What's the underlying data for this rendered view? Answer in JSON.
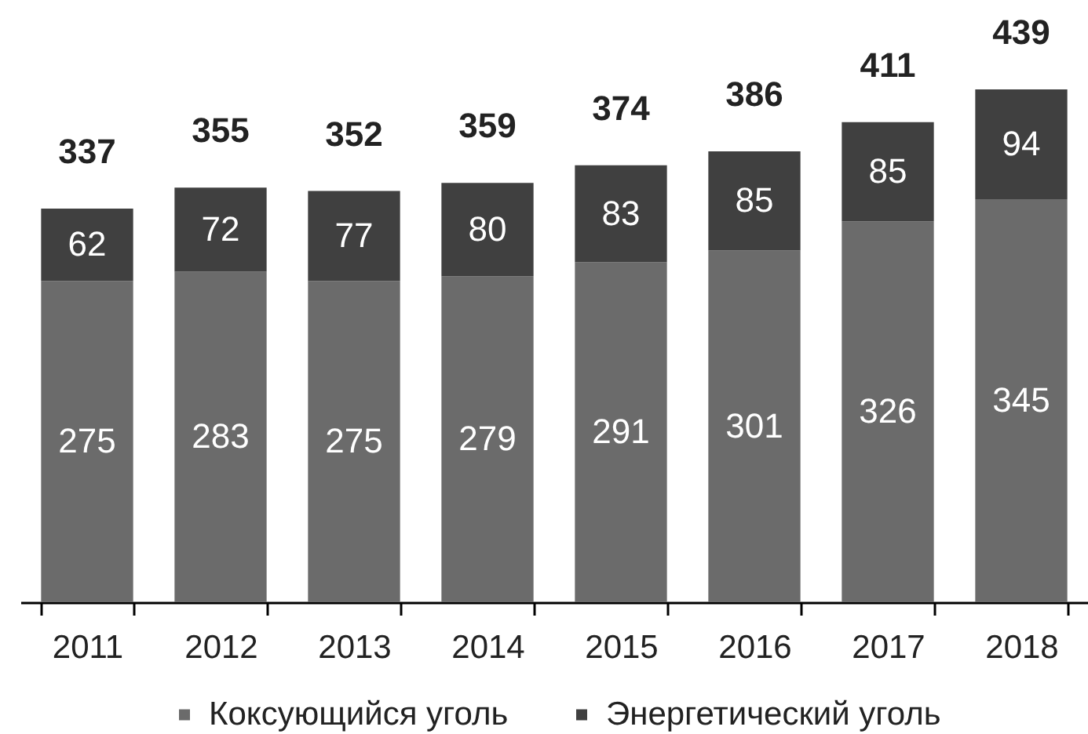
{
  "chart_data": {
    "type": "bar",
    "stacked": true,
    "categories": [
      "2011",
      "2012",
      "2013",
      "2014",
      "2015",
      "2016",
      "2017",
      "2018"
    ],
    "series": [
      {
        "name": "Коксующийся уголь",
        "color": "#6b6b6b",
        "values": [
          275,
          283,
          275,
          279,
          291,
          301,
          326,
          345
        ]
      },
      {
        "name": "Энергетический уголь",
        "color": "#404040",
        "values": [
          62,
          72,
          77,
          80,
          83,
          85,
          85,
          94
        ]
      }
    ],
    "data_labels": true,
    "totals": [
      "337",
      "355",
      "352",
      "359",
      "374",
      "386",
      "411",
      "439"
    ],
    "legend": "bottom"
  }
}
